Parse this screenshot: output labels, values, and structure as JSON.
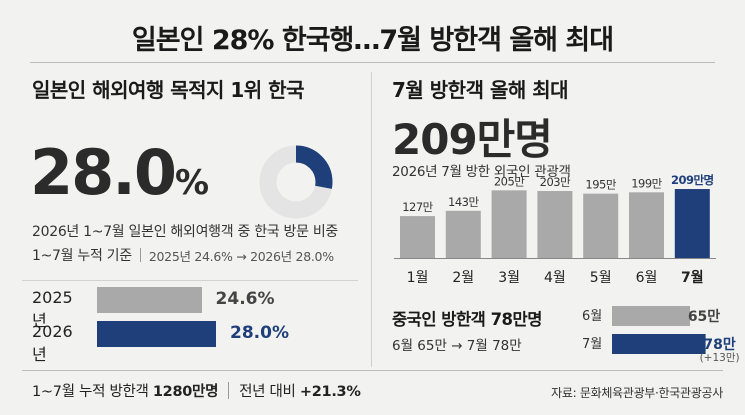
{
  "title": "일본인 28% 한국행…7월 방한객 올해 최대",
  "left": {
    "heading": "일본인 해외여행 목적지 1위 한국",
    "share_number": "28.0",
    "share_unit": "%",
    "share_value": 28.0,
    "description": "2026년 1~7월 일본인 해외여행객 중 한국 방문 비중",
    "basis": "1~7월 누적 기준",
    "comparison": "2025년 24.6% → 2026년 28.0%"
  },
  "right": {
    "heading": "7월 방한객 올해 최대",
    "big_count": "209만명",
    "chart_caption": "2026년 7월 방한 외국인 관광객"
  },
  "china": {
    "heading": "중국인 방한객 78만명",
    "change_text": "6월 65만 → 7월 78만",
    "diff_label": "(+13만)"
  },
  "footer": {
    "cumulative_label": "1~7월 누적 방한객 ",
    "cumulative_value": "1280만명",
    "yoy_label": "전년 대비 ",
    "yoy_value": "+21.3%",
    "source": "자료: 문화체육관광부·한국관광공사"
  },
  "colors": {
    "navy": "#1f3f7a",
    "gray": "#a9a9a9",
    "ring_bg": "#e4e4e4"
  },
  "chart_data": [
    {
      "type": "pie",
      "categories": [
        "한국",
        ""
      ],
      "values": [
        28.0,
        72.0
      ]
    },
    {
      "type": "bar",
      "orientation": "horizontal",
      "categories": [
        "2025년",
        "2026년"
      ],
      "values": [
        24.6,
        28.0
      ],
      "data_labels": [
        "24.6%",
        "28.0%"
      ]
    },
    {
      "type": "bar",
      "categories": [
        "1월",
        "2월",
        "3월",
        "4월",
        "5월",
        "6월",
        "7월"
      ],
      "values": [
        127,
        143,
        205,
        203,
        195,
        199,
        209
      ],
      "data_labels": [
        "127만",
        "143만",
        "205만",
        "203만",
        "195만",
        "199만",
        "209만명"
      ],
      "highlight_index": 6
    },
    {
      "type": "bar",
      "orientation": "horizontal",
      "categories": [
        "6월",
        "7월"
      ],
      "values": [
        65,
        78
      ],
      "data_labels": [
        "65만",
        "78만"
      ]
    }
  ]
}
